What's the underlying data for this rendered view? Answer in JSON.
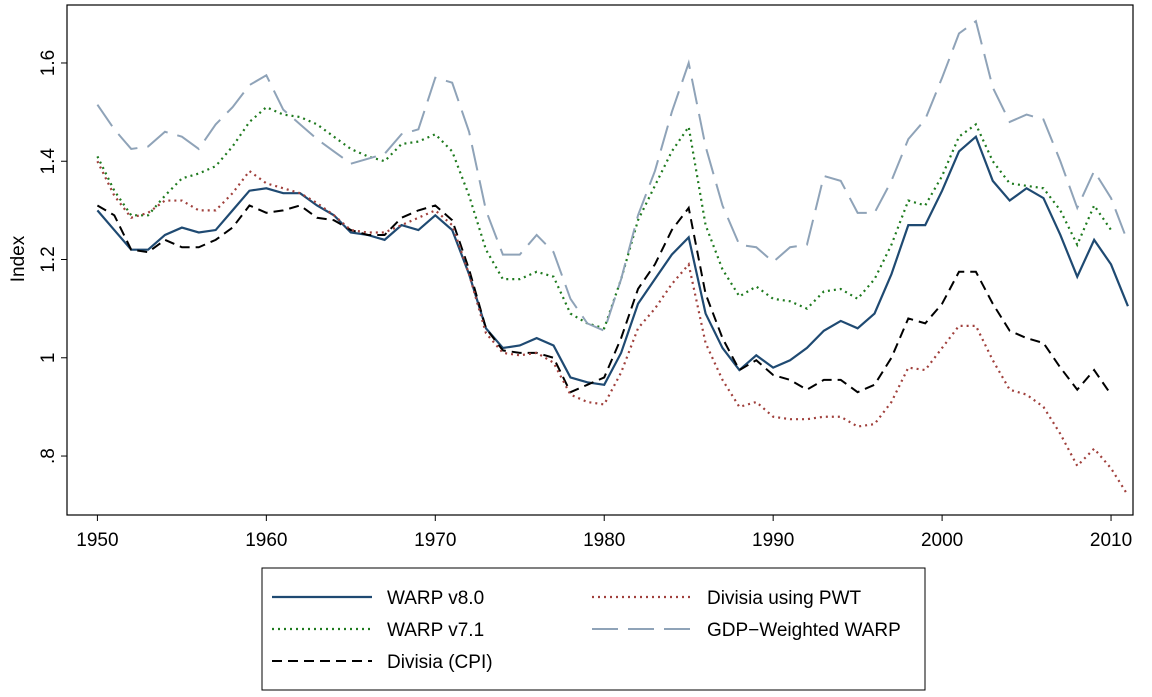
{
  "chart_data": {
    "type": "line",
    "y_label": "Index",
    "x": [
      1950,
      1951,
      1952,
      1953,
      1954,
      1955,
      1956,
      1957,
      1958,
      1959,
      1960,
      1961,
      1962,
      1963,
      1964,
      1965,
      1966,
      1967,
      1968,
      1969,
      1970,
      1971,
      1972,
      1973,
      1974,
      1975,
      1976,
      1977,
      1978,
      1979,
      1980,
      1981,
      1982,
      1983,
      1984,
      1985,
      1986,
      1987,
      1988,
      1989,
      1990,
      1991,
      1992,
      1993,
      1994,
      1995,
      1996,
      1997,
      1998,
      1999,
      2000,
      2001,
      2002,
      2003,
      2004,
      2005,
      2006,
      2007,
      2008,
      2009,
      2010,
      2011
    ],
    "xlim": [
      1948.2,
      2011.3
    ],
    "xticks": [
      1950,
      1960,
      1970,
      1980,
      1990,
      2000,
      2010
    ],
    "ylim": [
      0.68,
      1.718
    ],
    "yticks": [
      {
        "value": 0.8,
        "label": ".8"
      },
      1,
      1.2,
      1.4,
      1.6
    ],
    "grid": false,
    "series": [
      {
        "name": "WARP v8.0",
        "color": "#1f4a72",
        "style": "solid",
        "values": [
          1.3,
          1.26,
          1.22,
          1.22,
          1.25,
          1.265,
          1.255,
          1.26,
          1.3,
          1.34,
          1.345,
          1.335,
          1.335,
          1.31,
          1.29,
          1.255,
          1.25,
          1.24,
          1.27,
          1.26,
          1.29,
          1.26,
          1.17,
          1.06,
          1.02,
          1.025,
          1.04,
          1.025,
          0.96,
          0.95,
          0.945,
          1.01,
          1.11,
          1.16,
          1.21,
          1.245,
          1.09,
          1.02,
          0.975,
          1.005,
          0.98,
          0.995,
          1.02,
          1.055,
          1.075,
          1.06,
          1.09,
          1.17,
          1.27,
          1.27,
          1.34,
          1.42,
          1.45,
          1.36,
          1.32,
          1.345,
          1.325,
          1.25,
          1.165,
          1.24,
          1.19,
          1.105
        ]
      },
      {
        "name": "WARP v7.1",
        "color": "#1e7a1e",
        "style": "dotted",
        "values": [
          1.41,
          1.34,
          1.29,
          1.29,
          1.33,
          1.365,
          1.375,
          1.39,
          1.43,
          1.48,
          1.51,
          1.495,
          1.49,
          1.475,
          1.45,
          1.425,
          1.41,
          1.4,
          1.435,
          1.44,
          1.455,
          1.42,
          1.33,
          1.22,
          1.16,
          1.16,
          1.175,
          1.165,
          1.09,
          1.07,
          1.06,
          1.16,
          1.28,
          1.35,
          1.42,
          1.47,
          1.27,
          1.18,
          1.125,
          1.145,
          1.12,
          1.115,
          1.1,
          1.135,
          1.14,
          1.12,
          1.16,
          1.23,
          1.32,
          1.31,
          1.37,
          1.45,
          1.475,
          1.4,
          1.355,
          1.35,
          1.345,
          1.3,
          1.23,
          1.31,
          1.26,
          null
        ]
      },
      {
        "name": "Divisia (CPI)",
        "color": "#000000",
        "style": "dashed",
        "values": [
          1.31,
          1.29,
          1.22,
          1.215,
          1.24,
          1.225,
          1.225,
          1.24,
          1.265,
          1.31,
          1.295,
          1.3,
          1.31,
          1.285,
          1.28,
          1.26,
          1.25,
          1.25,
          1.285,
          1.3,
          1.31,
          1.28,
          1.18,
          1.06,
          1.015,
          1.01,
          1.01,
          1.0,
          0.93,
          0.945,
          0.96,
          1.04,
          1.14,
          1.19,
          1.26,
          1.305,
          1.13,
          1.04,
          0.975,
          0.995,
          0.965,
          0.955,
          0.935,
          0.955,
          0.955,
          0.93,
          0.945,
          1.0,
          1.08,
          1.07,
          1.11,
          1.175,
          1.175,
          1.11,
          1.055,
          1.04,
          1.03,
          0.98,
          0.935,
          0.975,
          0.925,
          null
        ]
      },
      {
        "name": "Divisia using PWT",
        "color": "#a0403c",
        "style": "dotted",
        "values": [
          1.4,
          1.33,
          1.285,
          1.295,
          1.32,
          1.32,
          1.3,
          1.3,
          1.335,
          1.38,
          1.355,
          1.345,
          1.335,
          1.315,
          1.29,
          1.26,
          1.255,
          1.255,
          1.27,
          1.285,
          1.3,
          1.27,
          1.17,
          1.05,
          1.01,
          1.005,
          1.01,
          0.99,
          0.925,
          0.91,
          0.905,
          0.97,
          1.06,
          1.1,
          1.15,
          1.19,
          1.03,
          0.955,
          0.9,
          0.91,
          0.88,
          0.875,
          0.875,
          0.88,
          0.88,
          0.86,
          0.865,
          0.91,
          0.98,
          0.975,
          1.02,
          1.065,
          1.065,
          0.995,
          0.935,
          0.925,
          0.9,
          0.845,
          0.78,
          0.815,
          0.775,
          0.72
        ]
      },
      {
        "name": "GDP−Weighted WARP",
        "color": "#8fa3b8",
        "style": "longdash",
        "values": [
          1.515,
          1.465,
          1.425,
          1.43,
          1.46,
          1.45,
          1.425,
          1.475,
          1.51,
          1.555,
          1.575,
          1.505,
          1.475,
          1.445,
          1.42,
          1.395,
          1.405,
          1.415,
          1.455,
          1.465,
          1.57,
          1.56,
          1.46,
          1.3,
          1.21,
          1.21,
          1.25,
          1.215,
          1.12,
          1.07,
          1.055,
          1.16,
          1.29,
          1.38,
          1.5,
          1.6,
          1.43,
          1.31,
          1.23,
          1.225,
          1.195,
          1.225,
          1.23,
          1.37,
          1.36,
          1.295,
          1.295,
          1.36,
          1.445,
          1.485,
          1.57,
          1.66,
          1.685,
          1.55,
          1.48,
          1.495,
          1.485,
          1.4,
          1.305,
          1.38,
          1.325,
          1.235
        ]
      }
    ]
  }
}
